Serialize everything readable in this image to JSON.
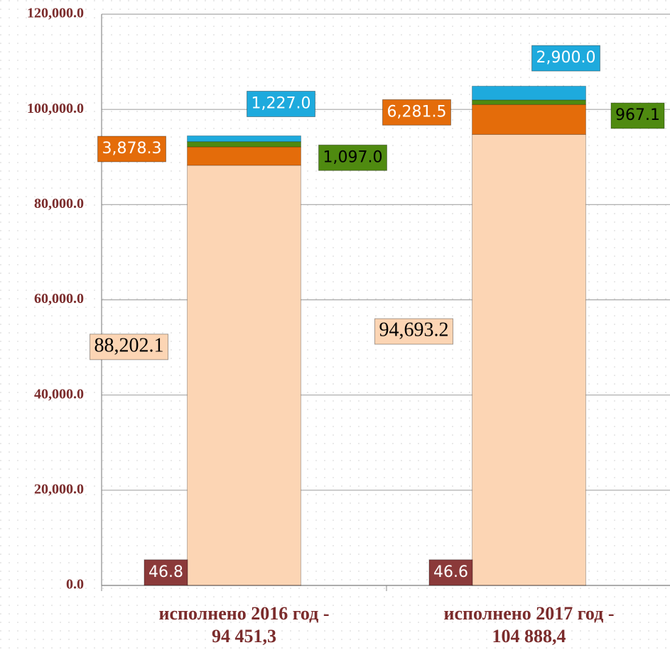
{
  "chart_data": {
    "type": "bar",
    "stacked": true,
    "categories": [
      "исполнено 2016 год -\n94 451,3",
      "исполнено 2017 год -\n104 888,4"
    ],
    "series": [
      {
        "color": "#8b3a3a",
        "values": [
          46.8,
          46.6
        ],
        "value_labels": [
          "46.8",
          "46.6"
        ]
      },
      {
        "color": "#fcd5b4",
        "values": [
          88202.1,
          94693.2
        ],
        "value_labels": [
          "88,202.1",
          "94,693.2"
        ]
      },
      {
        "color": "#e46c0a",
        "values": [
          3878.3,
          6281.5
        ],
        "value_labels": [
          "3,878.3",
          "6,281.5"
        ]
      },
      {
        "color": "#4f8a10",
        "values": [
          1097.0,
          967.1
        ],
        "value_labels": [
          "1,097.0",
          "967.1"
        ]
      },
      {
        "color": "#1eaadd",
        "values": [
          1227.0,
          2900.0
        ],
        "value_labels": [
          "1,227.0",
          "2,900.0"
        ]
      }
    ],
    "ylim": [
      0,
      120000
    ],
    "yticks": [
      {
        "value": 0,
        "label": "0.0"
      },
      {
        "value": 20000,
        "label": "20,000.0"
      },
      {
        "value": 40000,
        "label": "40,000.0"
      },
      {
        "value": 60000,
        "label": "60,000.0"
      },
      {
        "value": 80000,
        "label": "80,000.0"
      },
      {
        "value": 100000,
        "label": "100,000.0"
      },
      {
        "value": 120000,
        "label": "120,000.0"
      }
    ],
    "grid": true
  }
}
